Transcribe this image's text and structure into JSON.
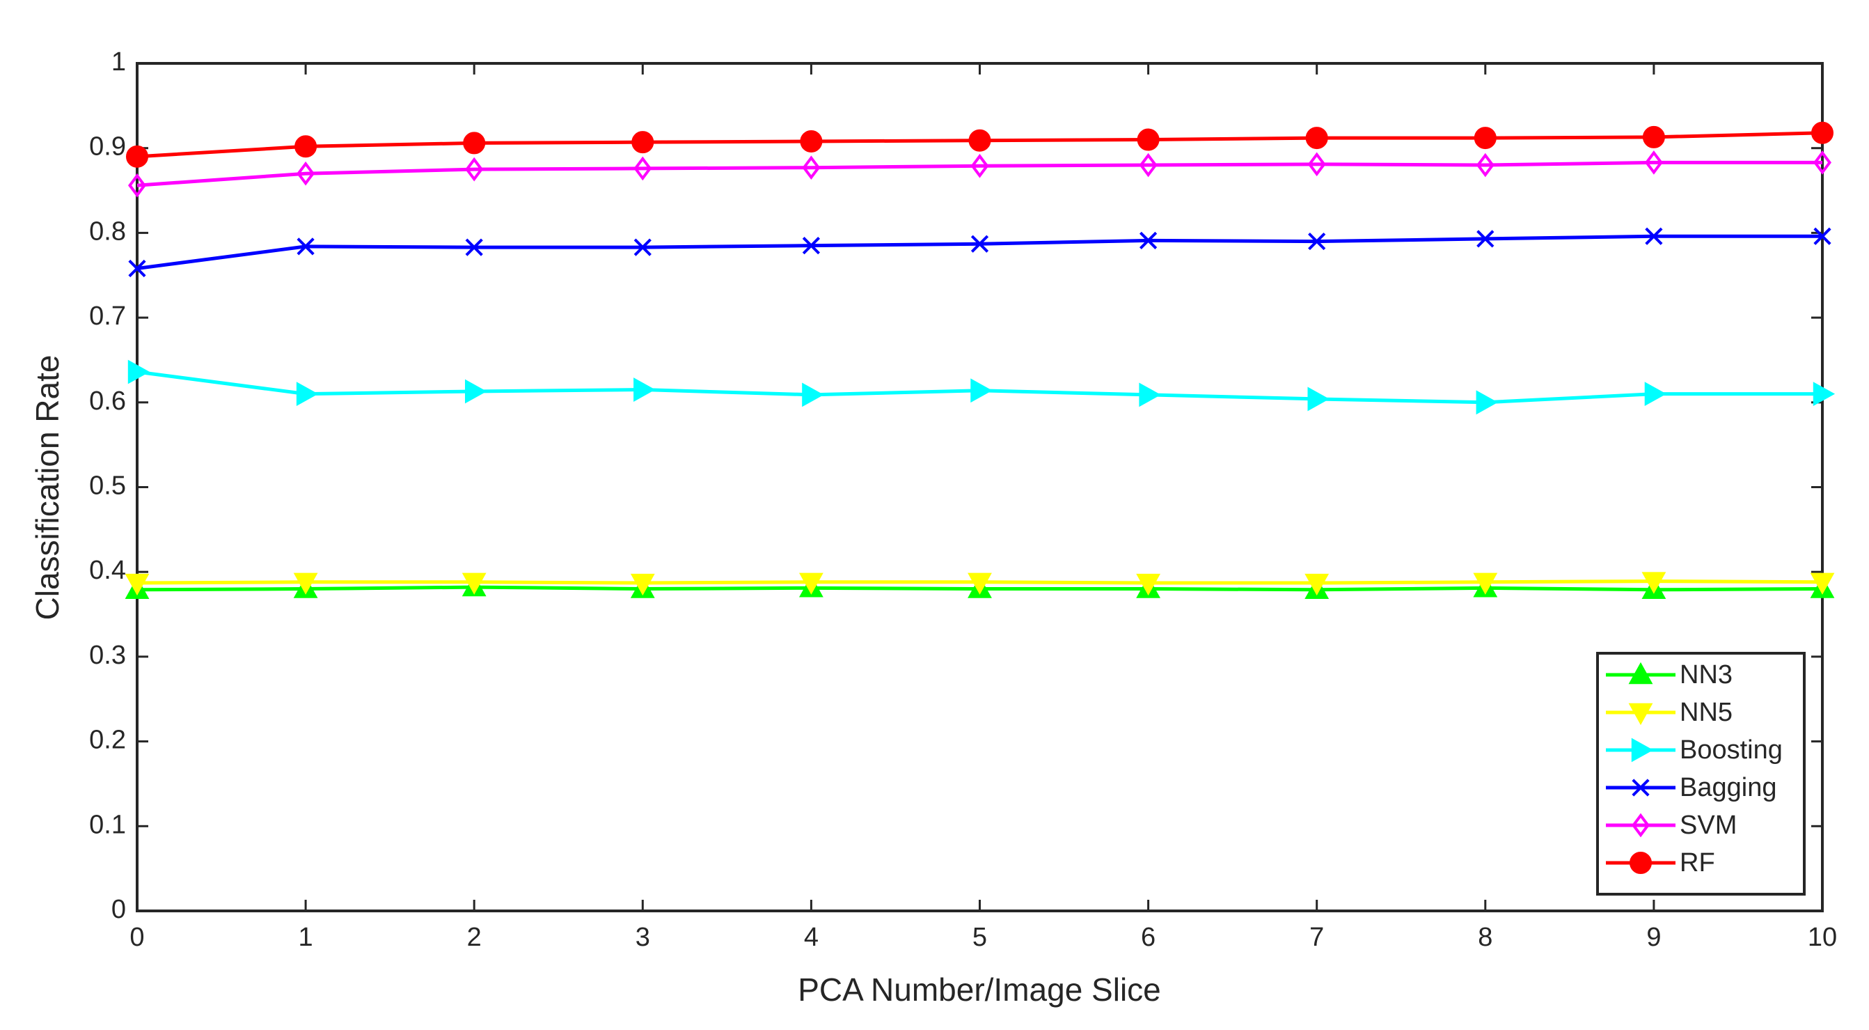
{
  "chart_data": {
    "type": "line",
    "xlabel": "PCA Number/Image Slice",
    "ylabel": "Classification Rate",
    "x": [
      0,
      1,
      2,
      3,
      4,
      5,
      6,
      7,
      8,
      9,
      10
    ],
    "xlim": [
      0,
      10
    ],
    "xticks": [
      0,
      1,
      2,
      3,
      4,
      5,
      6,
      7,
      8,
      9,
      10
    ],
    "ylim": [
      0,
      1
    ],
    "yticks": [
      0,
      0.1,
      0.2,
      0.3,
      0.4,
      0.5,
      0.6,
      0.7,
      0.8,
      0.9,
      1
    ],
    "grid": false,
    "legend": "southeast",
    "series": [
      {
        "name": "NN3",
        "color": "#00ff00",
        "marker": "triangle-up",
        "values": [
          0.379,
          0.38,
          0.382,
          0.38,
          0.381,
          0.38,
          0.38,
          0.379,
          0.381,
          0.379,
          0.38
        ]
      },
      {
        "name": "NN5",
        "color": "#ffff00",
        "marker": "triangle-down",
        "values": [
          0.387,
          0.388,
          0.388,
          0.387,
          0.388,
          0.388,
          0.387,
          0.387,
          0.388,
          0.389,
          0.388
        ]
      },
      {
        "name": "Boosting",
        "color": "#00ffff",
        "marker": "triangle-right",
        "values": [
          0.636,
          0.61,
          0.613,
          0.615,
          0.609,
          0.614,
          0.609,
          0.604,
          0.6,
          0.61,
          0.61
        ]
      },
      {
        "name": "Bagging",
        "color": "#0000ff",
        "marker": "x",
        "values": [
          0.758,
          0.784,
          0.783,
          0.783,
          0.785,
          0.787,
          0.791,
          0.79,
          0.793,
          0.796,
          0.796
        ]
      },
      {
        "name": "SVM",
        "color": "#ff00ff",
        "marker": "diamond",
        "values": [
          0.856,
          0.87,
          0.875,
          0.876,
          0.877,
          0.879,
          0.88,
          0.881,
          0.88,
          0.883,
          0.883
        ]
      },
      {
        "name": "RF",
        "color": "#ff0000",
        "marker": "circle",
        "values": [
          0.89,
          0.902,
          0.906,
          0.907,
          0.908,
          0.909,
          0.91,
          0.912,
          0.912,
          0.913,
          0.918
        ]
      }
    ]
  }
}
